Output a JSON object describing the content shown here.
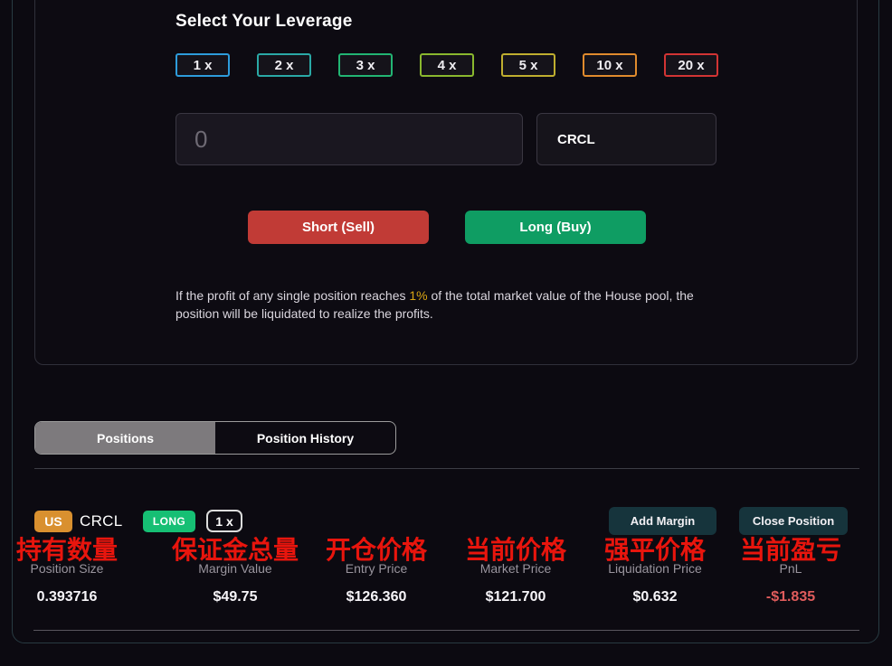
{
  "leverage_section": {
    "title": "Select Your Leverage",
    "options": [
      {
        "label": "1 x",
        "border_color": "#2d9cdb"
      },
      {
        "label": "2 x",
        "border_color": "#2aa9a6"
      },
      {
        "label": "3 x",
        "border_color": "#22b573"
      },
      {
        "label": "4 x",
        "border_color": "#8ab82e"
      },
      {
        "label": "5 x",
        "border_color": "#bfae2f"
      },
      {
        "label": "10 x",
        "border_color": "#e08b2d"
      },
      {
        "label": "20 x",
        "border_color": "#d23434"
      }
    ],
    "amount_placeholder": "0",
    "asset_symbol": "CRCL",
    "short_button": "Short (Sell)",
    "long_button": "Long (Buy)",
    "disclaimer_prefix": "If the profit of any single position reaches ",
    "disclaimer_highlight": "1%",
    "disclaimer_suffix": " of the total market value of the House pool, the position will be liquidated to realize the profits."
  },
  "tabs": {
    "positions": "Positions",
    "position_history": "Position History"
  },
  "position": {
    "country_badge": "US",
    "symbol": "CRCL",
    "side_badge": "LONG",
    "leverage_badge": "1 x",
    "add_margin_button": "Add Margin",
    "close_position_button": "Close Position",
    "columns": [
      {
        "label_zh": "持有数量",
        "label_en": "Position Size",
        "value": "0.393716"
      },
      {
        "label_zh": "保证金总量",
        "label_en": "Margin Value",
        "value": "$49.75"
      },
      {
        "label_zh": "开仓价格",
        "label_en": "Entry Price",
        "value": "$126.360"
      },
      {
        "label_zh": "当前价格",
        "label_en": "Market Price",
        "value": "$121.700"
      },
      {
        "label_zh": "强平价格",
        "label_en": "Liquidation Price",
        "value": "$0.632"
      },
      {
        "label_zh": "当前盈亏",
        "label_en": "PnL",
        "value": "-$1.835"
      }
    ]
  },
  "colors": {
    "background": "#0c0a11",
    "short_red": "#c13b36",
    "long_green": "#0f9d63",
    "badge_orange": "#d9902f",
    "badge_green": "#16bf74",
    "highlight_gold": "#d9a514",
    "translated_label_red": "#e8150d",
    "negative_pnl_red": "#e05c5c",
    "active_tab_gray": "#7d7a7d",
    "row_button_teal": "#16343c"
  }
}
